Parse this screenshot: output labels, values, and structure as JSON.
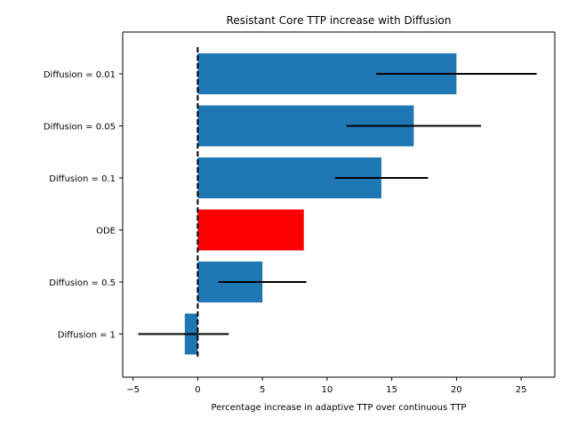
{
  "chart_data": {
    "type": "bar",
    "orientation": "horizontal",
    "title": "Resistant Core TTP increase with Diffusion",
    "xlabel": "Percentage increase in adaptive TTP over continuous TTP",
    "ylabel": "",
    "xlim": [
      -5.8,
      27.6
    ],
    "xticks": [
      -5,
      0,
      5,
      10,
      15,
      20,
      25
    ],
    "grid": false,
    "categories": [
      "Diffusion = 0.01",
      "Diffusion = 0.05",
      "Diffusion = 0.1",
      "ODE",
      "Diffusion = 0.5",
      "Diffusion = 1"
    ],
    "values": [
      20.0,
      16.7,
      14.2,
      8.2,
      5.0,
      -1.0
    ],
    "error_low": [
      13.8,
      11.5,
      10.6,
      null,
      1.6,
      -4.6
    ],
    "error_high": [
      26.2,
      21.9,
      17.8,
      null,
      8.4,
      2.4
    ],
    "bar_colors": [
      "#1f77b4",
      "#1f77b4",
      "#1f77b4",
      "#ff0000",
      "#1f77b4",
      "#1f77b4"
    ],
    "reference_line": {
      "x": 0,
      "style": "dashed",
      "color": "#000000"
    }
  }
}
